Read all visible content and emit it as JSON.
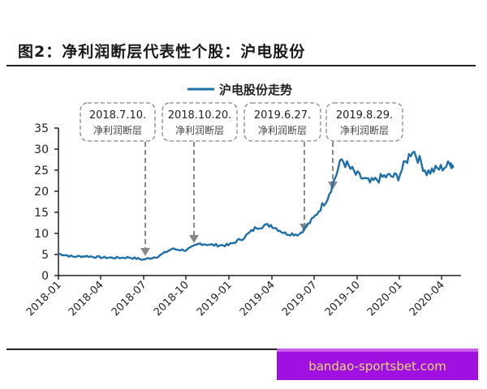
{
  "header": {
    "figure_title": "图2：净利润断层代表性个股：沪电股份"
  },
  "legend": {
    "label": "沪电股份走势",
    "color": "#1f6fa8"
  },
  "annotations": [
    {
      "date_label": "2018.7.10.",
      "text": "净利润断层",
      "target_x": "2018-07-10",
      "target_y": 4
    },
    {
      "date_label": "2018.10.20.",
      "text": "净利润断层",
      "target_x": "2018-10-20",
      "target_y": 7
    },
    {
      "date_label": "2019.6.27.",
      "text": "净利润断层",
      "target_x": "2019-06-27",
      "target_y": 10
    },
    {
      "date_label": "2019.8.29.",
      "text": "净利润断层",
      "target_x": "2019-08-29",
      "target_y": 20
    }
  ],
  "y_ticks": [
    "0",
    "5",
    "10",
    "15",
    "20",
    "25",
    "30",
    "35"
  ],
  "x_ticks": [
    "2018-01",
    "2018-04",
    "2018-07",
    "2018-10",
    "2019-01",
    "2019-04",
    "2019-07",
    "2019-10",
    "2020-01",
    "2020-04"
  ],
  "watermark": {
    "text": "bandao-sportsbet.com"
  },
  "chart_data": {
    "type": "line",
    "title": "图2：净利润断层代表性个股：沪电股份",
    "xlabel": "",
    "ylabel": "",
    "ylim": [
      0,
      35
    ],
    "grid": false,
    "legend_position": "top-center",
    "x": [
      "2018-01",
      "2018-02",
      "2018-03",
      "2018-04",
      "2018-05",
      "2018-06",
      "2018-07",
      "2018-08",
      "2018-09",
      "2018-10",
      "2018-11",
      "2018-12",
      "2019-01",
      "2019-02",
      "2019-03",
      "2019-04",
      "2019-05",
      "2019-06",
      "2019-07",
      "2019-08",
      "2019-09",
      "2019-10",
      "2019-11",
      "2019-12",
      "2020-01",
      "2020-02",
      "2020-03",
      "2020-04",
      "2020-05"
    ],
    "series": [
      {
        "name": "沪电股份走势",
        "values": [
          5.2,
          4.5,
          4.6,
          4.3,
          4.2,
          4.3,
          3.8,
          4.5,
          6.3,
          6.0,
          7.6,
          7.2,
          7.2,
          8.8,
          11.5,
          12.0,
          10.0,
          9.8,
          13.5,
          18.5,
          27.5,
          24.0,
          22.0,
          23.5,
          23.5,
          30.0,
          24.5,
          25.5,
          26.8
        ]
      }
    ],
    "annotations": [
      {
        "x": "2018-07-10",
        "text": "2018.7.10. 净利润断层"
      },
      {
        "x": "2018-10-20",
        "text": "2018.10.20. 净利润断层"
      },
      {
        "x": "2019-06-27",
        "text": "2019.6.27. 净利润断层"
      },
      {
        "x": "2019-08-29",
        "text": "2019.8.29. 净利润断层"
      }
    ]
  }
}
